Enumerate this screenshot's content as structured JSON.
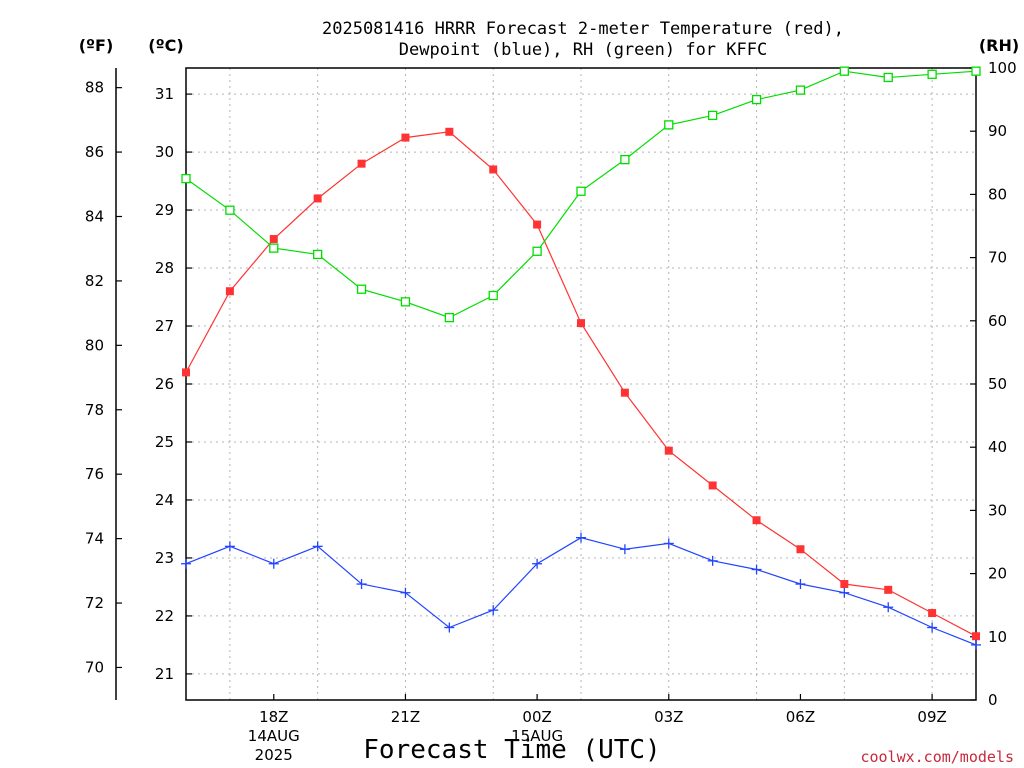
{
  "chart_data": {
    "type": "line",
    "title_line1": "2025081416 HRRR Forecast 2-meter Temperature (red),",
    "title_line2": "Dewpoint (blue), RH (green) for KFFC",
    "xlabel": "Forecast Time (UTC)",
    "unit_left_f": "(ºF)",
    "unit_left_c": "(ºC)",
    "unit_right": "(RH)",
    "credit": "coolwx.com/models",
    "x_tick_labels": [
      {
        "hour": 18,
        "lines": [
          "18Z",
          "14AUG",
          "2025"
        ]
      },
      {
        "hour": 21,
        "lines": [
          "21Z"
        ]
      },
      {
        "hour": 24,
        "lines": [
          "00Z",
          "15AUG"
        ]
      },
      {
        "hour": 27,
        "lines": [
          "03Z"
        ]
      },
      {
        "hour": 30,
        "lines": [
          "06Z"
        ]
      },
      {
        "hour": 33,
        "lines": [
          "09Z"
        ]
      }
    ],
    "x_hours": [
      16,
      17,
      18,
      19,
      20,
      21,
      22,
      23,
      24,
      25,
      26,
      27,
      28,
      29,
      30,
      31,
      32,
      33,
      34
    ],
    "xlim": [
      16,
      34
    ],
    "ylim_celsius": [
      20.55,
      31.45
    ],
    "ylim_fahrenheit": [
      68.99,
      88.61
    ],
    "ylim_rh": [
      0,
      100
    ],
    "celsius_ticks": [
      21,
      22,
      23,
      24,
      25,
      26,
      27,
      28,
      29,
      30,
      31
    ],
    "fahrenheit_ticks": [
      70,
      72,
      74,
      76,
      78,
      80,
      82,
      84,
      86,
      88
    ],
    "rh_ticks": [
      0,
      10,
      20,
      30,
      40,
      50,
      60,
      70,
      80,
      90,
      100
    ],
    "grid": true,
    "series": [
      {
        "name": "Temperature",
        "color": "#ff3333",
        "marker": "filled-square",
        "axis": "celsius",
        "values": [
          26.2,
          27.6,
          28.5,
          29.2,
          29.8,
          30.25,
          30.35,
          29.7,
          28.75,
          27.05,
          25.85,
          24.85,
          24.25,
          23.65,
          23.15,
          22.55,
          22.45,
          22.05,
          21.65
        ]
      },
      {
        "name": "Dewpoint",
        "color": "#2244ff",
        "marker": "plus",
        "axis": "celsius",
        "values": [
          22.9,
          23.2,
          22.9,
          23.2,
          22.55,
          22.4,
          21.8,
          22.1,
          22.9,
          23.35,
          23.15,
          23.25,
          22.95,
          22.8,
          22.55,
          22.4,
          22.15,
          21.8,
          21.5
        ]
      },
      {
        "name": "Relative Humidity",
        "color": "#00dd00",
        "marker": "open-square",
        "axis": "rh",
        "values": [
          82.5,
          77.5,
          71.5,
          70.5,
          65,
          63,
          60.5,
          64,
          71,
          80.5,
          85.5,
          91,
          92.5,
          95,
          96.5,
          99.5,
          98.5,
          99,
          99.5
        ]
      }
    ]
  }
}
